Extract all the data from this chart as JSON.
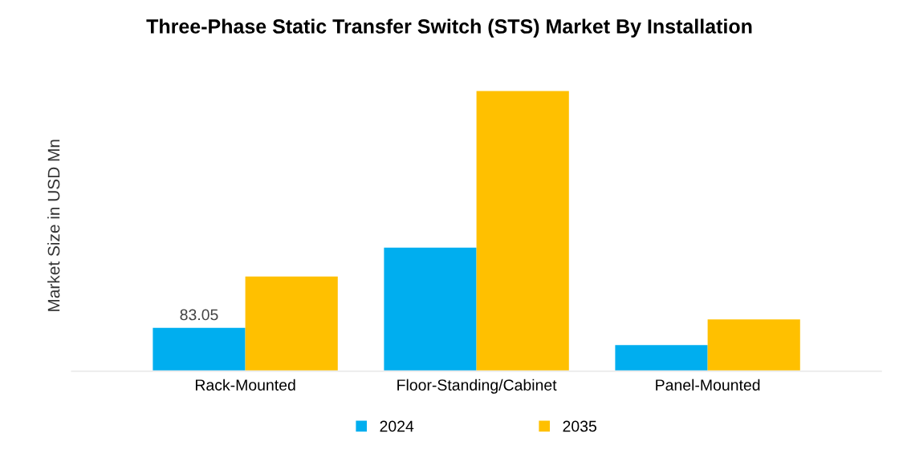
{
  "chart_data": {
    "type": "bar",
    "title": "Three-Phase Static Transfer Switch (STS) Market By Installation",
    "ylabel": "Market Size in USD Mn",
    "categories": [
      "Rack-Mounted",
      "Floor-Standing/Cabinet",
      "Panel-Mounted"
    ],
    "series": [
      {
        "name": "2024",
        "color": "#00aeef",
        "values": [
          83.05,
          236,
          50
        ],
        "value_labels": [
          "83.05",
          null,
          null
        ]
      },
      {
        "name": "2035",
        "color": "#ffc000",
        "values": [
          181,
          535,
          99
        ]
      }
    ],
    "legend": "bottom",
    "grid": false
  }
}
